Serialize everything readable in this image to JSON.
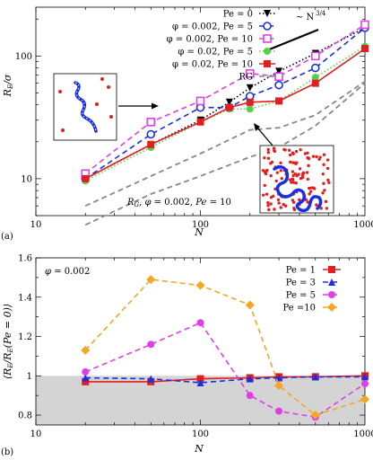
{
  "chart_data": [
    {
      "type": "line",
      "panel_label": "(a)",
      "xscale": "log",
      "yscale": "log",
      "xlabel": "N",
      "ylabel": "R_E/σ",
      "xlim": [
        10,
        1000
      ],
      "ylim": [
        5,
        250
      ],
      "xticks": [
        "10",
        "100",
        "1000"
      ],
      "yticks": [
        "10",
        "100"
      ],
      "legend_position": "top-right",
      "series": [
        {
          "name": "Pe = 0",
          "color": "#000000",
          "line": "dotted",
          "marker": "triangle-down",
          "x": [
            20,
            50,
            100,
            150,
            200,
            300,
            500,
            1000
          ],
          "y": [
            10,
            19,
            30,
            42,
            55,
            75,
            105,
            170
          ]
        },
        {
          "name": "φ = 0.002, Pe = 5",
          "color": "#1a2ee6",
          "line": "dashed",
          "marker": "circle-open",
          "x": [
            20,
            50,
            100,
            150,
            200,
            300,
            500,
            1000
          ],
          "y": [
            10,
            23,
            38,
            38,
            47,
            58,
            80,
            170
          ]
        },
        {
          "name": "φ = 0.002, Pe = 10",
          "color": "#e23ee8",
          "line": "dashed",
          "marker": "square-open",
          "x": [
            20,
            50,
            100,
            200,
            300,
            500,
            1000
          ],
          "y": [
            11,
            29,
            43,
            72,
            68,
            100,
            180
          ]
        },
        {
          "name": "φ = 0.02, Pe = 5",
          "color": "#55d04a",
          "line": "dotted",
          "marker": "circle",
          "x": [
            20,
            50,
            100,
            150,
            200,
            300,
            500,
            1000
          ],
          "y": [
            9.6,
            18,
            29,
            37,
            37,
            43,
            67,
            120
          ]
        },
        {
          "name": "φ = 0.02, Pe = 10",
          "color": "#e02020",
          "line": "solid",
          "marker": "square",
          "x": [
            20,
            50,
            100,
            150,
            200,
            300,
            500,
            1000
          ],
          "y": [
            10,
            19,
            29,
            38,
            42,
            43,
            60,
            115
          ]
        },
        {
          "name": "R_G",
          "color": "#888888",
          "line": "dashed",
          "marker": "none",
          "x": [
            20,
            50,
            100,
            200,
            300,
            500,
            1000
          ],
          "y": [
            4.2,
            7.5,
            10.5,
            15,
            18,
            27,
            60
          ]
        },
        {
          "name": "",
          "color": "#888888",
          "line": "dashed",
          "marker": "none",
          "x": [
            20,
            50,
            100,
            200,
            300,
            500,
            1000
          ],
          "y": [
            6,
            10.5,
            16,
            25,
            26,
            33,
            62
          ]
        }
      ],
      "power_law_label": "~ N^{3/4}",
      "annotation": "R_G, φ = 0.002, Pe = 10"
    },
    {
      "type": "line",
      "panel_label": "(b)",
      "xscale": "log",
      "xlabel": "N",
      "ylabel": "⟨R_E/R_E(Pe = 0)⟩",
      "xlim": [
        10,
        1000
      ],
      "ylim": [
        0.75,
        1.6
      ],
      "xticks": [
        "10",
        "100",
        "1000"
      ],
      "yticks": [
        "0.8",
        "1",
        "1.2",
        "1.4",
        "1.6"
      ],
      "shaded_band": [
        0.75,
        1.0
      ],
      "annotation": "φ = 0.002",
      "legend_position": "top-right",
      "series": [
        {
          "name": "Pe = 1",
          "color": "#e02020",
          "line": "solid",
          "marker": "square",
          "x": [
            20,
            50,
            100,
            200,
            300,
            500,
            1000
          ],
          "y": [
            0.97,
            0.97,
            0.985,
            0.99,
            0.995,
            0.995,
            1.0
          ]
        },
        {
          "name": "Pe = 3",
          "color": "#1a2ee6",
          "line": "dashed",
          "marker": "triangle-up",
          "x": [
            20,
            50,
            100,
            200,
            300,
            500,
            1000
          ],
          "y": [
            0.99,
            0.985,
            0.965,
            0.985,
            0.99,
            0.995,
            0.995
          ]
        },
        {
          "name": "Pe = 5",
          "color": "#e23ee8",
          "line": "dashed",
          "marker": "circle",
          "x": [
            20,
            50,
            100,
            200,
            300,
            500,
            1000
          ],
          "y": [
            1.02,
            1.16,
            1.27,
            0.9,
            0.82,
            0.79,
            0.96
          ]
        },
        {
          "name": "Pe =10",
          "color": "#f5a623",
          "line": "dashed",
          "marker": "diamond",
          "x": [
            20,
            50,
            100,
            200,
            300,
            500,
            1000
          ],
          "y": [
            1.13,
            1.49,
            1.46,
            1.36,
            0.95,
            0.8,
            0.88
          ]
        }
      ]
    }
  ]
}
